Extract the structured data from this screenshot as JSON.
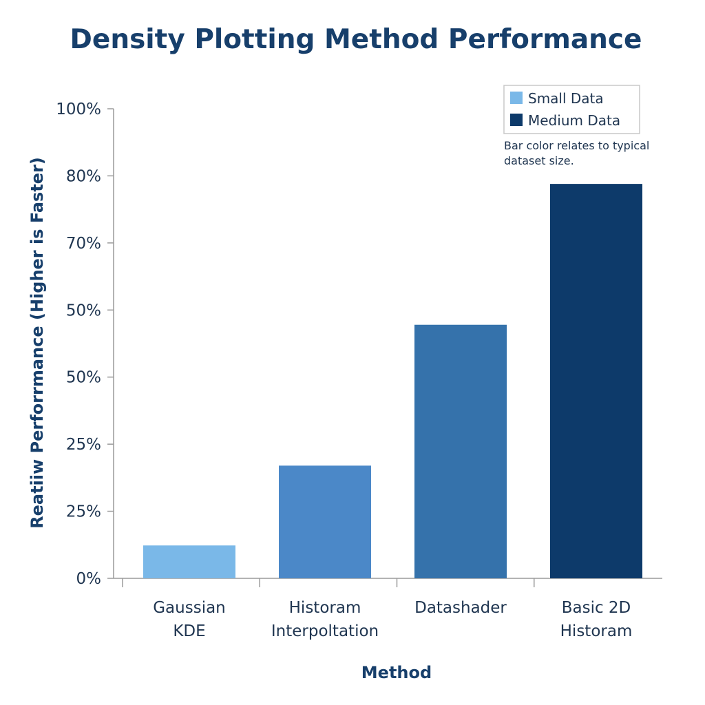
{
  "chart_data": {
    "type": "bar",
    "title": "Density Plotting Method Performance",
    "xlabel": "Method",
    "ylabel": "Reatiiw Perforrmance (Higher is Faster)",
    "y_tick_labels": [
      "0%",
      "25%",
      "25%",
      "50%",
      "50%",
      "70%",
      "80%",
      "100%"
    ],
    "ylim": [
      0,
      100
    ],
    "grid": false,
    "legend_position": "top-right",
    "legend": [
      {
        "label": "Small Data",
        "color": "#7ab8e8"
      },
      {
        "label": "Medium Data",
        "color": "#0d3a6a"
      }
    ],
    "note": [
      "Bar color relates to typical",
      "dataset size."
    ],
    "categories": [
      [
        "Gaussian",
        "KDE"
      ],
      [
        "Historam",
        "Interpoltation"
      ],
      [
        "Datashader"
      ],
      [
        "Basic 2D",
        "Historam"
      ]
    ],
    "values": [
      7,
      24,
      54,
      84
    ],
    "bar_colors": [
      "#7ab8e8",
      "#4b88c8",
      "#3572ab",
      "#0d3a6a"
    ]
  }
}
